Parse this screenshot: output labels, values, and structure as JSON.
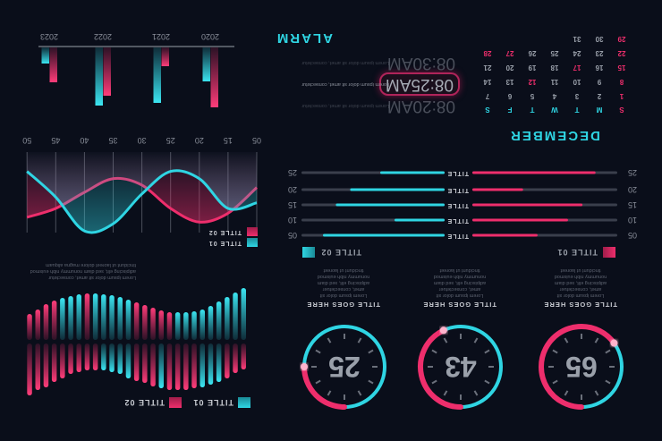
{
  "colors": {
    "background": "#0a0e1a",
    "cyan": "#2fd5e3",
    "pink": "#ee2e6c",
    "track": "#3a3f4c",
    "text": "#8a8f9a"
  },
  "gauges": [
    {
      "value": 65,
      "title": "TITLE GOES HERE",
      "text": "Lorem ipsum dolor sit amet, consectetuer adipiscing elit, sed diam nonummy nibh euismod tincidunt ut laoreet"
    },
    {
      "value": 43,
      "title": "TITLE GOES HERE",
      "text": "Lorem ipsum dolor sit amet, consectetuer adipiscing elit, sed diam nonummy nibh euismod tincidunt ut laoreet"
    },
    {
      "value": 25,
      "title": "TITLE GOES HERE",
      "text": "Lorem ipsum dolor sit amet, consectetuer adipiscing elit, sed diam nonummy nibh euismod tincidunt ut laoreet"
    }
  ],
  "bar_wave": {
    "legend": [
      "TITLE 01",
      "TITLE 02"
    ],
    "text": "Lorem ipsum dolor sit amet, consectetur adipiscing elit, sed diam nonummy nibh euismod tincidunt ut laoreet dolore magna aliquam",
    "upper": {
      "values": [
        29,
        33,
        39,
        43,
        46,
        49,
        50,
        52,
        52,
        52,
        50,
        48,
        44,
        42,
        39,
        34,
        32,
        30,
        30,
        30,
        32,
        34,
        39,
        43,
        49,
        52,
        58
      ],
      "colors": [
        "pink",
        "pink",
        "pink",
        "cyan",
        "cyan",
        "cyan",
        "pink",
        "pink",
        "pink",
        "pink",
        "cyan",
        "pink",
        "pink",
        "pink",
        "cyan",
        "cyan",
        "cyan",
        "cyan",
        "pink",
        "pink",
        "pink",
        "pink",
        "pink",
        "pink",
        "pink",
        "pink",
        "pink"
      ]
    },
    "lower": {
      "values": [
        58,
        53,
        48,
        43,
        38,
        34,
        32,
        31,
        31,
        31,
        33,
        36,
        39,
        42,
        45,
        48,
        50,
        51,
        52,
        52,
        51,
        49,
        47,
        44,
        40,
        34,
        29
      ],
      "colors": [
        "cyan",
        "cyan",
        "cyan",
        "cyan",
        "cyan",
        "cyan",
        "cyan",
        "cyan",
        "cyan",
        "pink",
        "pink",
        "pink",
        "pink",
        "pink",
        "cyan",
        "cyan",
        "cyan",
        "cyan",
        "cyan",
        "pink",
        "cyan",
        "cyan",
        "cyan",
        "pink",
        "pink",
        "pink",
        "pink"
      ]
    }
  },
  "progress": {
    "row_labels": [
      "05",
      "10",
      "15",
      "20",
      "25"
    ],
    "center_label": "TITLE",
    "title_01": {
      "label": "TITLE 01",
      "values": [
        45,
        66,
        76,
        35,
        85
      ]
    },
    "title_02": {
      "label": "TITLE 02",
      "values": [
        85,
        35,
        76,
        66,
        45
      ]
    }
  },
  "chart_data": [
    {
      "type": "bar",
      "categories": [
        "2020",
        "2021",
        "2022",
        "2023"
      ],
      "series": [
        {
          "color": "pink",
          "values": [
            67,
            21,
            54,
            39
          ]
        },
        {
          "color": "cyan",
          "values": [
            38,
            62,
            65,
            18
          ]
        }
      ]
    },
    {
      "type": "area",
      "x": [
        "05",
        "15",
        "20",
        "25",
        "30",
        "35",
        "40",
        "45",
        "50"
      ],
      "series": [
        {
          "name": "TITLE 01",
          "color": "cyan",
          "values": [
            63,
            70,
            33,
            24,
            52,
            89,
            98,
            56,
            24
          ]
        },
        {
          "name": "TITLE 02",
          "color": "pink",
          "values": [
            44,
            76,
            87,
            70,
            41,
            33,
            50,
            70,
            81
          ]
        }
      ],
      "grid": "vertical",
      "legend": "top-left"
    }
  ],
  "calendar": {
    "month": "DECEMBER",
    "weekdays": [
      "S",
      "M",
      "T",
      "W",
      "T",
      "F",
      "S"
    ],
    "weeks": [
      [
        "1",
        "2",
        "3",
        "4",
        "5",
        "6",
        "7"
      ],
      [
        "8",
        "9",
        "10",
        "11",
        "12",
        "13",
        "14"
      ],
      [
        "15",
        "16",
        "17",
        "18",
        "19",
        "20",
        "21"
      ],
      [
        "22",
        "23",
        "24",
        "25",
        "26",
        "27",
        "28"
      ],
      [
        "29",
        "30",
        "31"
      ]
    ],
    "highlighted": [
      "1",
      "8",
      "12",
      "15",
      "17",
      "22",
      "27",
      "28",
      "29"
    ]
  },
  "alarm": {
    "title": "ALARM",
    "items": [
      {
        "time": "08:20AM",
        "text": "Lorem ipsum dolor sit amet, consectetur",
        "active": false
      },
      {
        "time": "08:25AM",
        "text": "Lorem ipsum dolor sit amet, consectetur",
        "active": true
      },
      {
        "time": "08:30AM",
        "text": "Lorem ipsum dolor sit amet, consectetur",
        "active": false
      }
    ]
  }
}
